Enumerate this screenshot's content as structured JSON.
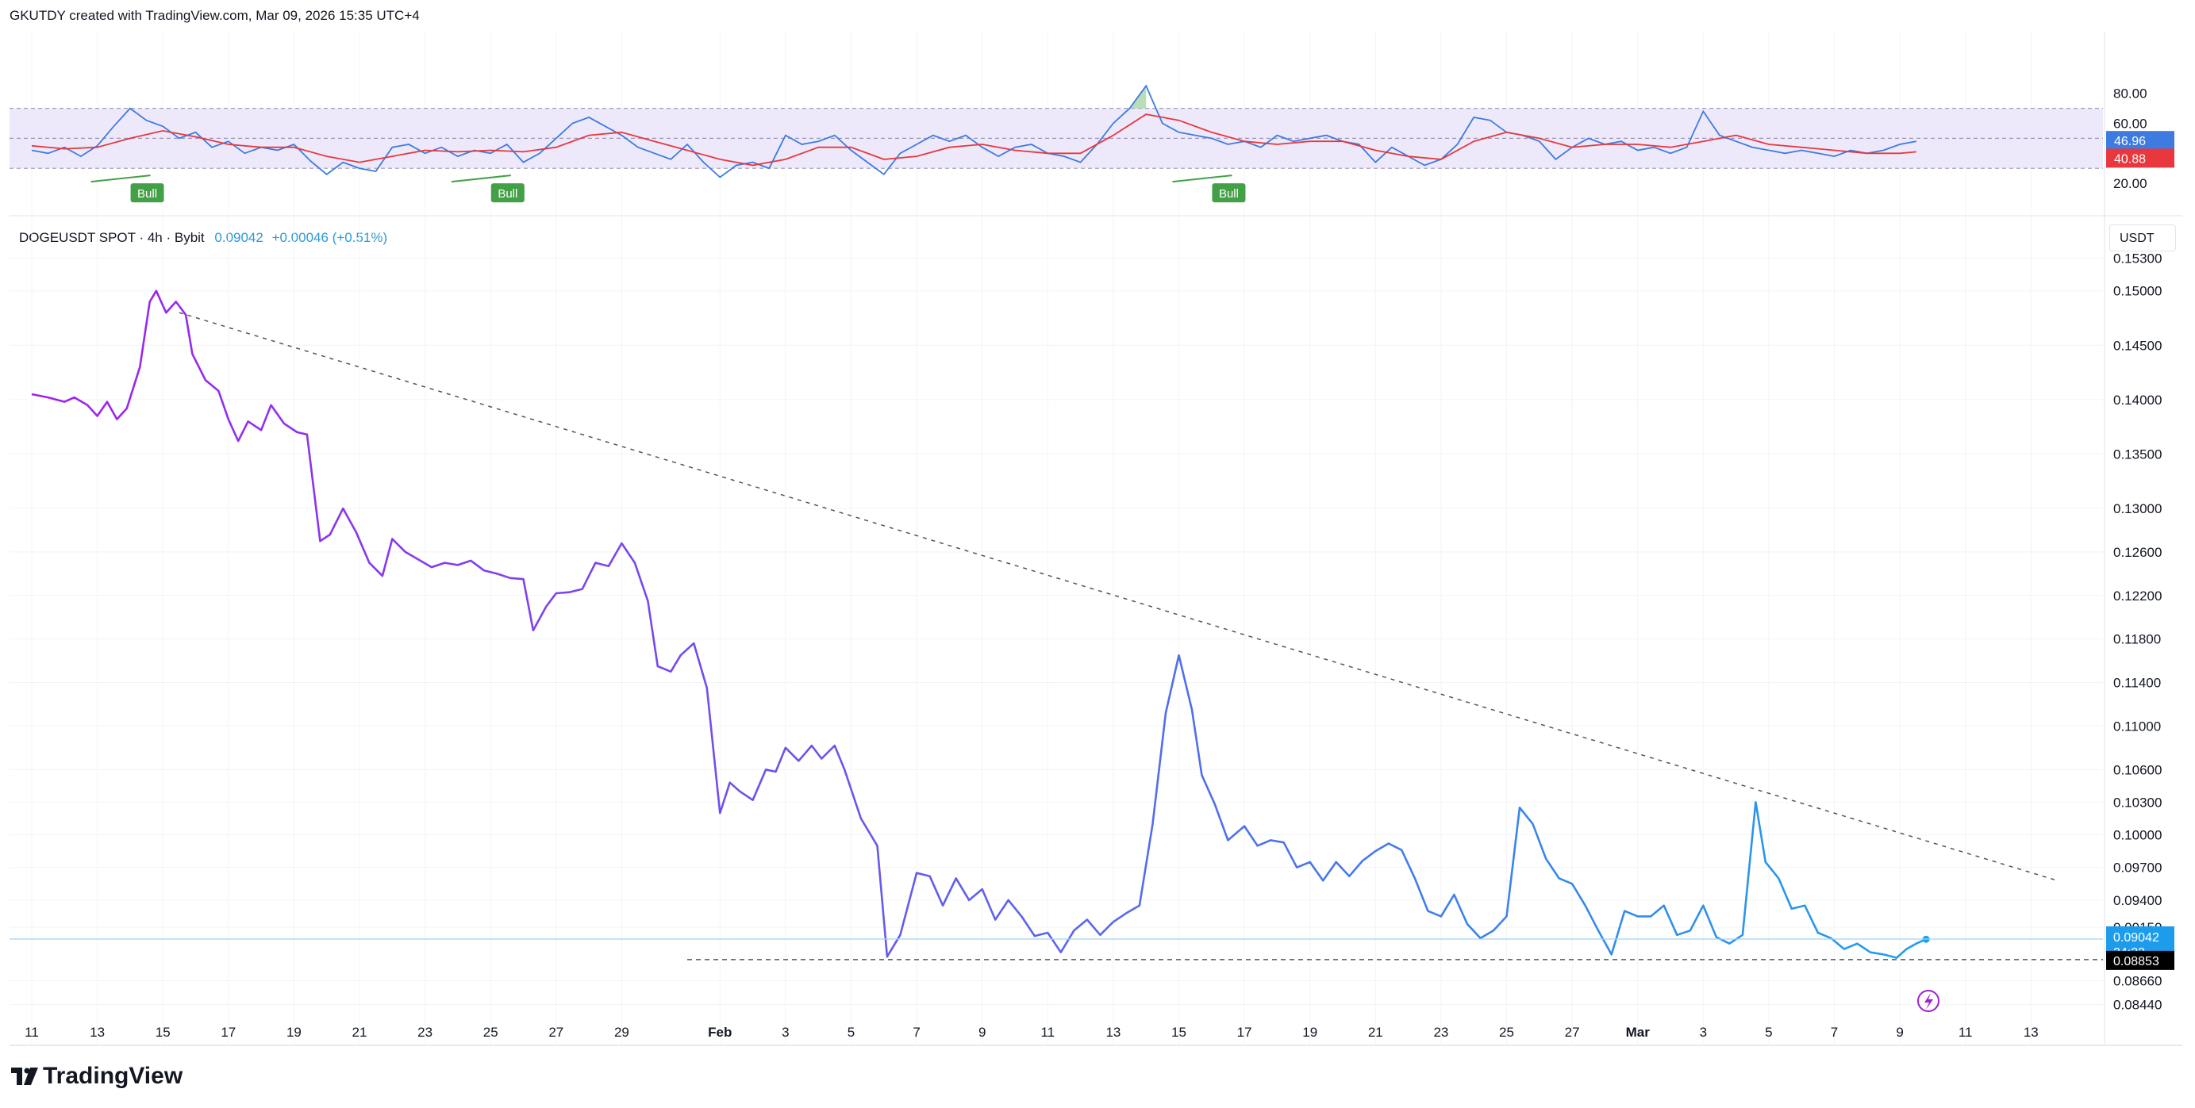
{
  "header": {
    "attribution": "GKUTDY created with TradingView.com, Mar 09, 2026 15:35 UTC+4"
  },
  "symbol": {
    "name": "DOGEUSDT SPOT · 4h · Bybit",
    "price": "0.09042",
    "change": "+0.00046 (+0.51%)"
  },
  "unit_label": "USDT",
  "brand": "TradingView",
  "colors": {
    "price_start": "#a020f0",
    "price_end": "#1ea0ec",
    "rsi": "#3d7be0",
    "rsi_ma": "#e8383d",
    "bull": "#43a047",
    "band": "#ede9fb"
  },
  "chart_data": [
    {
      "type": "line",
      "name": "rsi-panel",
      "y_ticks": [
        "80.00",
        "60.00",
        "20.00"
      ],
      "y_tick_values": [
        80,
        60,
        20
      ],
      "ylim": [
        10,
        92
      ],
      "band": [
        30,
        70
      ],
      "midline": 50,
      "current_rsi": "46.96",
      "current_ma": "40.88",
      "bull_labels": [
        "Bull",
        "Bull",
        "Bull"
      ],
      "bull_dates": [
        3.5,
        14.5,
        36.5
      ],
      "rsi_points": [
        [
          0,
          42
        ],
        [
          0.5,
          40
        ],
        [
          1,
          44
        ],
        [
          1.5,
          38
        ],
        [
          2,
          45
        ],
        [
          2.5,
          58
        ],
        [
          3,
          70
        ],
        [
          3.5,
          62
        ],
        [
          4,
          58
        ],
        [
          4.5,
          50
        ],
        [
          5,
          54
        ],
        [
          5.5,
          44
        ],
        [
          6,
          48
        ],
        [
          6.5,
          40
        ],
        [
          7,
          44
        ],
        [
          7.5,
          42
        ],
        [
          8,
          46
        ],
        [
          8.5,
          35
        ],
        [
          9,
          26
        ],
        [
          9.5,
          34
        ],
        [
          10,
          30
        ],
        [
          10.5,
          28
        ],
        [
          11,
          44
        ],
        [
          11.5,
          46
        ],
        [
          12,
          40
        ],
        [
          12.5,
          44
        ],
        [
          13,
          38
        ],
        [
          13.5,
          42
        ],
        [
          14,
          40
        ],
        [
          14.5,
          46
        ],
        [
          15,
          34
        ],
        [
          15.5,
          40
        ],
        [
          16,
          50
        ],
        [
          16.5,
          60
        ],
        [
          17,
          64
        ],
        [
          17.5,
          58
        ],
        [
          18,
          52
        ],
        [
          18.5,
          44
        ],
        [
          19,
          40
        ],
        [
          19.5,
          36
        ],
        [
          20,
          46
        ],
        [
          20.5,
          34
        ],
        [
          21,
          24
        ],
        [
          21.5,
          32
        ],
        [
          22,
          34
        ],
        [
          22.5,
          30
        ],
        [
          23,
          52
        ],
        [
          23.5,
          46
        ],
        [
          24,
          48
        ],
        [
          24.5,
          52
        ],
        [
          25,
          42
        ],
        [
          25.5,
          34
        ],
        [
          26,
          26
        ],
        [
          26.5,
          40
        ],
        [
          27,
          46
        ],
        [
          27.5,
          52
        ],
        [
          28,
          48
        ],
        [
          28.5,
          52
        ],
        [
          29,
          44
        ],
        [
          29.5,
          38
        ],
        [
          30,
          44
        ],
        [
          30.5,
          46
        ],
        [
          31,
          40
        ],
        [
          31.5,
          38
        ],
        [
          32,
          34
        ],
        [
          32.5,
          46
        ],
        [
          33,
          60
        ],
        [
          33.5,
          70
        ],
        [
          34,
          85
        ],
        [
          34.5,
          60
        ],
        [
          35,
          54
        ],
        [
          35.5,
          52
        ],
        [
          36,
          50
        ],
        [
          36.5,
          46
        ],
        [
          37,
          48
        ],
        [
          37.5,
          44
        ],
        [
          38,
          52
        ],
        [
          38.5,
          48
        ],
        [
          39,
          50
        ],
        [
          39.5,
          52
        ],
        [
          40,
          48
        ],
        [
          40.5,
          46
        ],
        [
          41,
          34
        ],
        [
          41.5,
          44
        ],
        [
          42,
          38
        ],
        [
          42.5,
          32
        ],
        [
          43,
          36
        ],
        [
          43.5,
          46
        ],
        [
          44,
          64
        ],
        [
          44.5,
          62
        ],
        [
          45,
          54
        ],
        [
          45.5,
          52
        ],
        [
          46,
          48
        ],
        [
          46.5,
          36
        ],
        [
          47,
          44
        ],
        [
          47.5,
          50
        ],
        [
          48,
          46
        ],
        [
          48.5,
          48
        ],
        [
          49,
          42
        ],
        [
          49.5,
          44
        ],
        [
          50,
          40
        ],
        [
          50.5,
          44
        ],
        [
          51,
          68
        ],
        [
          51.5,
          52
        ],
        [
          52,
          48
        ],
        [
          52.5,
          44
        ],
        [
          53,
          42
        ],
        [
          53.5,
          40
        ],
        [
          54,
          42
        ],
        [
          54.5,
          40
        ],
        [
          55,
          38
        ],
        [
          55.5,
          42
        ],
        [
          56,
          40
        ],
        [
          56.5,
          42
        ],
        [
          57,
          46
        ],
        [
          57.5,
          48
        ]
      ],
      "ma_points": [
        [
          0,
          45
        ],
        [
          1,
          43
        ],
        [
          2,
          44
        ],
        [
          3,
          50
        ],
        [
          4,
          55
        ],
        [
          5,
          51
        ],
        [
          6,
          46
        ],
        [
          7,
          44
        ],
        [
          8,
          44
        ],
        [
          9,
          38
        ],
        [
          10,
          34
        ],
        [
          11,
          38
        ],
        [
          12,
          42
        ],
        [
          13,
          41
        ],
        [
          14,
          42
        ],
        [
          15,
          41
        ],
        [
          16,
          44
        ],
        [
          17,
          52
        ],
        [
          18,
          54
        ],
        [
          19,
          48
        ],
        [
          20,
          42
        ],
        [
          21,
          36
        ],
        [
          22,
          32
        ],
        [
          23,
          36
        ],
        [
          24,
          44
        ],
        [
          25,
          44
        ],
        [
          26,
          36
        ],
        [
          27,
          38
        ],
        [
          28,
          44
        ],
        [
          29,
          46
        ],
        [
          30,
          42
        ],
        [
          31,
          40
        ],
        [
          32,
          40
        ],
        [
          33,
          52
        ],
        [
          34,
          66
        ],
        [
          35,
          62
        ],
        [
          36,
          54
        ],
        [
          37,
          48
        ],
        [
          38,
          46
        ],
        [
          39,
          48
        ],
        [
          40,
          48
        ],
        [
          41,
          42
        ],
        [
          42,
          38
        ],
        [
          43,
          36
        ],
        [
          44,
          48
        ],
        [
          45,
          54
        ],
        [
          46,
          50
        ],
        [
          47,
          44
        ],
        [
          48,
          46
        ],
        [
          49,
          46
        ],
        [
          50,
          44
        ],
        [
          51,
          48
        ],
        [
          52,
          52
        ],
        [
          53,
          46
        ],
        [
          54,
          44
        ],
        [
          55,
          42
        ],
        [
          56,
          40
        ],
        [
          57,
          40
        ],
        [
          57.5,
          41
        ]
      ]
    },
    {
      "type": "line",
      "name": "price-panel",
      "x_ticks": [
        "11",
        "13",
        "15",
        "17",
        "19",
        "21",
        "23",
        "25",
        "27",
        "29",
        "Feb",
        "3",
        "5",
        "7",
        "9",
        "11",
        "13",
        "15",
        "17",
        "19",
        "21",
        "23",
        "25",
        "27",
        "Mar",
        "3",
        "5",
        "7",
        "9",
        "11",
        "13"
      ],
      "x_tick_days": [
        0,
        2,
        4,
        6,
        8,
        10,
        12,
        14,
        16,
        18,
        21,
        23,
        25,
        27,
        29,
        31,
        33,
        35,
        37,
        39,
        41,
        43,
        45,
        47,
        49,
        51,
        53,
        55,
        57,
        59,
        61
      ],
      "y_ticks": [
        "0.15300",
        "0.15000",
        "0.14500",
        "0.14000",
        "0.13500",
        "0.13000",
        "0.12600",
        "0.12200",
        "0.11800",
        "0.11400",
        "0.11000",
        "0.10600",
        "0.10300",
        "0.10000",
        "0.09700",
        "0.09400",
        "0.09150",
        "0.08660",
        "0.08440"
      ],
      "y_tick_values": [
        0.153,
        0.15,
        0.145,
        0.14,
        0.135,
        0.13,
        0.126,
        0.122,
        0.118,
        0.114,
        0.11,
        0.106,
        0.103,
        0.1,
        0.097,
        0.094,
        0.0915,
        0.0866,
        0.0844
      ],
      "ylim": [
        0.0832,
        0.1545
      ],
      "last_price_label": "0.09042",
      "last_price_value": 0.09042,
      "countdown": "24:22",
      "support_label": "0.08853",
      "support_value": 0.08853,
      "trendline": {
        "from": [
          4.5,
          0.148
        ],
        "to": [
          61.8,
          0.0958
        ]
      },
      "support_line": {
        "from": [
          20,
          0.08853
        ],
        "to": [
          63.5,
          0.08853
        ]
      },
      "price_points": [
        [
          0,
          0.1405
        ],
        [
          0.5,
          0.1402
        ],
        [
          1,
          0.1398
        ],
        [
          1.3,
          0.1402
        ],
        [
          1.7,
          0.1395
        ],
        [
          2,
          0.1385
        ],
        [
          2.3,
          0.1398
        ],
        [
          2.6,
          0.1382
        ],
        [
          2.9,
          0.1392
        ],
        [
          3.3,
          0.143
        ],
        [
          3.6,
          0.149
        ],
        [
          3.8,
          0.15
        ],
        [
          4.1,
          0.148
        ],
        [
          4.4,
          0.149
        ],
        [
          4.7,
          0.1478
        ],
        [
          4.9,
          0.1442
        ],
        [
          5.3,
          0.1418
        ],
        [
          5.7,
          0.1408
        ],
        [
          6,
          0.1382
        ],
        [
          6.3,
          0.1362
        ],
        [
          6.6,
          0.138
        ],
        [
          7,
          0.1372
        ],
        [
          7.3,
          0.1395
        ],
        [
          7.7,
          0.1378
        ],
        [
          8.1,
          0.137
        ],
        [
          8.4,
          0.1368
        ],
        [
          8.8,
          0.127
        ],
        [
          9.1,
          0.1276
        ],
        [
          9.5,
          0.13
        ],
        [
          9.9,
          0.1278
        ],
        [
          10.3,
          0.125
        ],
        [
          10.7,
          0.1238
        ],
        [
          11,
          0.1272
        ],
        [
          11.4,
          0.126
        ],
        [
          11.8,
          0.1253
        ],
        [
          12.2,
          0.1246
        ],
        [
          12.6,
          0.125
        ],
        [
          13,
          0.1248
        ],
        [
          13.4,
          0.1252
        ],
        [
          13.8,
          0.1243
        ],
        [
          14.2,
          0.124
        ],
        [
          14.6,
          0.1236
        ],
        [
          15,
          0.1235
        ],
        [
          15.3,
          0.1188
        ],
        [
          15.7,
          0.121
        ],
        [
          16,
          0.1222
        ],
        [
          16.4,
          0.1223
        ],
        [
          16.8,
          0.1226
        ],
        [
          17.2,
          0.125
        ],
        [
          17.6,
          0.1247
        ],
        [
          18,
          0.1268
        ],
        [
          18.4,
          0.125
        ],
        [
          18.8,
          0.1215
        ],
        [
          19.1,
          0.1155
        ],
        [
          19.5,
          0.115
        ],
        [
          19.8,
          0.1165
        ],
        [
          20.2,
          0.1176
        ],
        [
          20.6,
          0.1135
        ],
        [
          21,
          0.102
        ],
        [
          21.3,
          0.1048
        ],
        [
          21.6,
          0.104
        ],
        [
          22,
          0.1032
        ],
        [
          22.4,
          0.106
        ],
        [
          22.7,
          0.1058
        ],
        [
          23,
          0.108
        ],
        [
          23.4,
          0.1068
        ],
        [
          23.8,
          0.1082
        ],
        [
          24.1,
          0.107
        ],
        [
          24.5,
          0.1082
        ],
        [
          24.8,
          0.106
        ],
        [
          25.3,
          0.1015
        ],
        [
          25.8,
          0.099
        ],
        [
          26.1,
          0.0888
        ],
        [
          26.5,
          0.0908
        ],
        [
          27,
          0.0965
        ],
        [
          27.4,
          0.0962
        ],
        [
          27.8,
          0.0935
        ],
        [
          28.2,
          0.096
        ],
        [
          28.6,
          0.094
        ],
        [
          29,
          0.095
        ],
        [
          29.4,
          0.0922
        ],
        [
          29.8,
          0.094
        ],
        [
          30.2,
          0.0925
        ],
        [
          30.6,
          0.0907
        ],
        [
          31,
          0.091
        ],
        [
          31.4,
          0.0892
        ],
        [
          31.8,
          0.0912
        ],
        [
          32.2,
          0.0922
        ],
        [
          32.6,
          0.0908
        ],
        [
          33,
          0.092
        ],
        [
          33.4,
          0.0928
        ],
        [
          33.8,
          0.0935
        ],
        [
          34.2,
          0.101
        ],
        [
          34.6,
          0.1112
        ],
        [
          35,
          0.1165
        ],
        [
          35.4,
          0.1115
        ],
        [
          35.7,
          0.1055
        ],
        [
          36.1,
          0.1028
        ],
        [
          36.5,
          0.0995
        ],
        [
          37,
          0.1008
        ],
        [
          37.4,
          0.099
        ],
        [
          37.8,
          0.0995
        ],
        [
          38.2,
          0.0993
        ],
        [
          38.6,
          0.097
        ],
        [
          39,
          0.0975
        ],
        [
          39.4,
          0.0958
        ],
        [
          39.8,
          0.0975
        ],
        [
          40.2,
          0.0962
        ],
        [
          40.6,
          0.0976
        ],
        [
          41,
          0.0985
        ],
        [
          41.4,
          0.0992
        ],
        [
          41.8,
          0.0986
        ],
        [
          42.2,
          0.096
        ],
        [
          42.6,
          0.093
        ],
        [
          43,
          0.0925
        ],
        [
          43.4,
          0.0945
        ],
        [
          43.8,
          0.0918
        ],
        [
          44.2,
          0.0905
        ],
        [
          44.6,
          0.0912
        ],
        [
          45,
          0.0925
        ],
        [
          45.4,
          0.1025
        ],
        [
          45.8,
          0.101
        ],
        [
          46.2,
          0.0978
        ],
        [
          46.6,
          0.096
        ],
        [
          47,
          0.0955
        ],
        [
          47.4,
          0.0935
        ],
        [
          47.8,
          0.0912
        ],
        [
          48.2,
          0.089
        ],
        [
          48.6,
          0.093
        ],
        [
          49,
          0.0925
        ],
        [
          49.4,
          0.0925
        ],
        [
          49.8,
          0.0935
        ],
        [
          50.2,
          0.0908
        ],
        [
          50.6,
          0.0912
        ],
        [
          51,
          0.0935
        ],
        [
          51.4,
          0.0906
        ],
        [
          51.8,
          0.09
        ],
        [
          52.2,
          0.0908
        ],
        [
          52.6,
          0.103
        ],
        [
          52.9,
          0.0975
        ],
        [
          53.3,
          0.096
        ],
        [
          53.7,
          0.0932
        ],
        [
          54.1,
          0.0935
        ],
        [
          54.5,
          0.091
        ],
        [
          54.9,
          0.0905
        ],
        [
          55.3,
          0.0895
        ],
        [
          55.7,
          0.09
        ],
        [
          56.1,
          0.0892
        ],
        [
          56.5,
          0.089
        ],
        [
          56.9,
          0.0887
        ],
        [
          57.2,
          0.0895
        ],
        [
          57.5,
          0.09
        ],
        [
          57.8,
          0.0904
        ]
      ]
    }
  ]
}
